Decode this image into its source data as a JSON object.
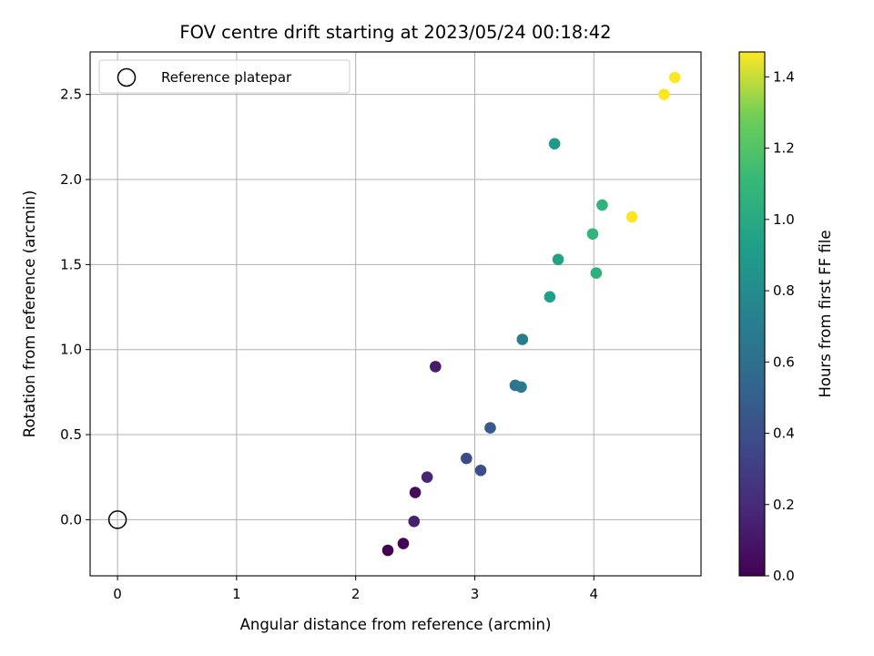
{
  "chart_data": {
    "type": "scatter",
    "title": "FOV centre drift starting at 2023/05/24 00:18:42",
    "xlabel": "Angular distance from reference (arcmin)",
    "ylabel": "Rotation from reference (arcmin)",
    "xlim": [
      -0.23,
      4.9
    ],
    "ylim": [
      -0.33,
      2.75
    ],
    "x_ticks": [
      0,
      1,
      2,
      3,
      4
    ],
    "y_ticks": [
      0.0,
      0.5,
      1.0,
      1.5,
      2.0,
      2.5
    ],
    "x_tick_labels": [
      "0",
      "1",
      "2",
      "3",
      "4"
    ],
    "y_tick_labels": [
      "0.0",
      "0.5",
      "1.0",
      "1.5",
      "2.0",
      "2.5"
    ],
    "grid": true,
    "legend": {
      "placement": "top-left",
      "entries": [
        {
          "label": "Reference platepar",
          "marker": "open-circle",
          "x": 0,
          "y": 0
        }
      ]
    },
    "colorbar": {
      "label": "Hours from first FF file",
      "colormap": "viridis",
      "range": [
        0.0,
        1.47
      ],
      "ticks": [
        0.0,
        0.2,
        0.4,
        0.6,
        0.8,
        1.0,
        1.2,
        1.4
      ],
      "tick_labels": [
        "0.0",
        "0.2",
        "0.4",
        "0.6",
        "0.8",
        "1.0",
        "1.2",
        "1.4"
      ]
    },
    "points": [
      {
        "x": 2.27,
        "y": -0.18,
        "c": 0.0
      },
      {
        "x": 2.4,
        "y": -0.14,
        "c": 0.02
      },
      {
        "x": 2.5,
        "y": 0.16,
        "c": 0.05
      },
      {
        "x": 2.49,
        "y": -0.01,
        "c": 0.14
      },
      {
        "x": 2.6,
        "y": 0.25,
        "c": 0.17
      },
      {
        "x": 2.67,
        "y": 0.9,
        "c": 0.12
      },
      {
        "x": 2.93,
        "y": 0.36,
        "c": 0.38
      },
      {
        "x": 3.05,
        "y": 0.29,
        "c": 0.4
      },
      {
        "x": 3.13,
        "y": 0.54,
        "c": 0.46
      },
      {
        "x": 3.34,
        "y": 0.79,
        "c": 0.65
      },
      {
        "x": 3.39,
        "y": 0.78,
        "c": 0.67
      },
      {
        "x": 3.4,
        "y": 1.06,
        "c": 0.69
      },
      {
        "x": 3.63,
        "y": 1.31,
        "c": 0.93
      },
      {
        "x": 3.67,
        "y": 2.21,
        "c": 0.89
      },
      {
        "x": 3.7,
        "y": 1.53,
        "c": 0.95
      },
      {
        "x": 3.99,
        "y": 1.68,
        "c": 1.08
      },
      {
        "x": 4.02,
        "y": 1.45,
        "c": 1.05
      },
      {
        "x": 4.07,
        "y": 1.85,
        "c": 1.07
      },
      {
        "x": 4.32,
        "y": 1.78,
        "c": 1.47
      },
      {
        "x": 4.59,
        "y": 2.5,
        "c": 1.47
      },
      {
        "x": 4.68,
        "y": 2.6,
        "c": 1.47
      }
    ]
  }
}
